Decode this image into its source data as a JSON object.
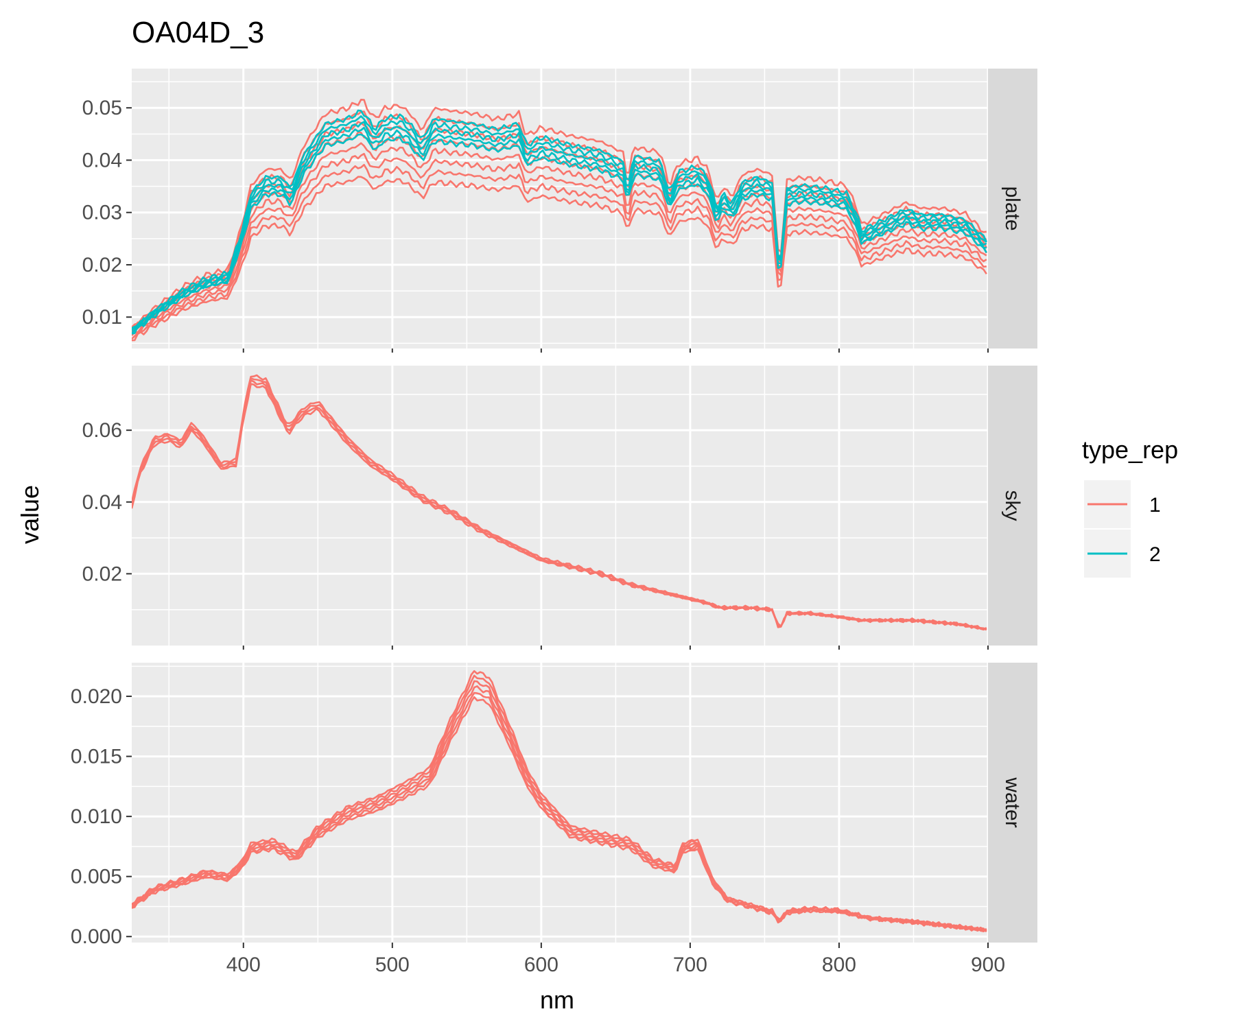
{
  "chart_data": {
    "type": "line",
    "title": "OA04D_3",
    "xlabel": "nm",
    "ylabel": "value",
    "xlim": [
      325,
      900
    ],
    "x_ticks": [
      "400",
      "500",
      "600",
      "700",
      "800",
      "900"
    ],
    "x_tick_values": [
      400,
      500,
      600,
      700,
      800,
      900
    ],
    "grid": true,
    "legend": {
      "title": "type_rep",
      "placement": "right",
      "entries": [
        {
          "label": "1",
          "color": "#F8766D"
        },
        {
          "label": "2",
          "color": "#00BFC4"
        }
      ]
    },
    "panels": [
      {
        "strip": "plate",
        "ylim": [
          0.004,
          0.0575
        ],
        "y_ticks": [
          "0.01",
          "0.02",
          "0.03",
          "0.04",
          "0.05"
        ],
        "y_tick_values": [
          0.01,
          0.02,
          0.03,
          0.04,
          0.05
        ],
        "series": [
          {
            "type_rep": "1",
            "color": "#F8766D",
            "count": 8,
            "spread": [
              -0.0095,
              0.0025
            ]
          },
          {
            "type_rep": "2",
            "color": "#00BFC4",
            "count": 5,
            "spread": [
              -0.0028,
              0.0008
            ]
          }
        ],
        "profile": [
          [
            325,
            0.0075
          ],
          [
            340,
            0.011
          ],
          [
            360,
            0.015
          ],
          [
            375,
            0.017
          ],
          [
            390,
            0.018
          ],
          [
            400,
            0.027
          ],
          [
            405,
            0.033
          ],
          [
            415,
            0.036
          ],
          [
            425,
            0.036
          ],
          [
            432,
            0.034
          ],
          [
            440,
            0.04
          ],
          [
            455,
            0.046
          ],
          [
            470,
            0.047
          ],
          [
            480,
            0.0485
          ],
          [
            488,
            0.045
          ],
          [
            495,
            0.047
          ],
          [
            505,
            0.0475
          ],
          [
            512,
            0.046
          ],
          [
            520,
            0.043
          ],
          [
            528,
            0.047
          ],
          [
            540,
            0.0465
          ],
          [
            555,
            0.046
          ],
          [
            570,
            0.045
          ],
          [
            585,
            0.046
          ],
          [
            590,
            0.042
          ],
          [
            600,
            0.0435
          ],
          [
            620,
            0.042
          ],
          [
            640,
            0.041
          ],
          [
            655,
            0.039
          ],
          [
            658,
            0.034
          ],
          [
            662,
            0.04
          ],
          [
            680,
            0.039
          ],
          [
            686,
            0.033
          ],
          [
            692,
            0.037
          ],
          [
            705,
            0.038
          ],
          [
            712,
            0.036
          ],
          [
            718,
            0.03
          ],
          [
            722,
            0.033
          ],
          [
            728,
            0.031
          ],
          [
            735,
            0.035
          ],
          [
            745,
            0.036
          ],
          [
            755,
            0.035
          ],
          [
            760,
            0.018
          ],
          [
            765,
            0.034
          ],
          [
            775,
            0.0345
          ],
          [
            790,
            0.034
          ],
          [
            805,
            0.033
          ],
          [
            812,
            0.029
          ],
          [
            815,
            0.026
          ],
          [
            830,
            0.028
          ],
          [
            845,
            0.03
          ],
          [
            855,
            0.029
          ],
          [
            870,
            0.029
          ],
          [
            885,
            0.028
          ],
          [
            900,
            0.024
          ]
        ]
      },
      {
        "strip": "sky",
        "ylim": [
          0.0,
          0.078
        ],
        "y_ticks": [
          "0.02",
          "0.04",
          "0.06"
        ],
        "y_tick_values": [
          0.02,
          0.04,
          0.06
        ],
        "series": [
          {
            "type_rep": "1",
            "color": "#F8766D",
            "count": 4,
            "spread": [
              -0.0007,
              0.0007
            ]
          }
        ],
        "profile": [
          [
            325,
            0.039
          ],
          [
            330,
            0.048
          ],
          [
            340,
            0.057
          ],
          [
            350,
            0.058
          ],
          [
            358,
            0.056
          ],
          [
            365,
            0.061
          ],
          [
            372,
            0.058
          ],
          [
            385,
            0.05
          ],
          [
            395,
            0.051
          ],
          [
            400,
            0.064
          ],
          [
            405,
            0.074
          ],
          [
            415,
            0.073
          ],
          [
            430,
            0.06
          ],
          [
            440,
            0.065
          ],
          [
            450,
            0.067
          ],
          [
            460,
            0.062
          ],
          [
            470,
            0.057
          ],
          [
            485,
            0.051
          ],
          [
            500,
            0.047
          ],
          [
            520,
            0.041
          ],
          [
            540,
            0.037
          ],
          [
            560,
            0.032
          ],
          [
            580,
            0.028
          ],
          [
            600,
            0.024
          ],
          [
            620,
            0.022
          ],
          [
            640,
            0.02
          ],
          [
            660,
            0.017
          ],
          [
            680,
            0.015
          ],
          [
            700,
            0.013
          ],
          [
            710,
            0.012
          ],
          [
            720,
            0.0105
          ],
          [
            740,
            0.0105
          ],
          [
            755,
            0.01
          ],
          [
            760,
            0.0045
          ],
          [
            765,
            0.009
          ],
          [
            780,
            0.009
          ],
          [
            800,
            0.008
          ],
          [
            815,
            0.007
          ],
          [
            850,
            0.007
          ],
          [
            880,
            0.006
          ],
          [
            900,
            0.0045
          ]
        ]
      },
      {
        "strip": "water",
        "ylim": [
          -0.0005,
          0.0228
        ],
        "y_ticks": [
          "0.000",
          "0.005",
          "0.010",
          "0.015",
          "0.020"
        ],
        "y_tick_values": [
          0.0,
          0.005,
          0.01,
          0.015,
          0.02
        ],
        "series": [
          {
            "type_rep": "1",
            "color": "#F8766D",
            "count": 6,
            "spread": [
              -0.0006,
              0.0016
            ]
          }
        ],
        "profile": [
          [
            325,
            0.0025
          ],
          [
            340,
            0.0038
          ],
          [
            360,
            0.0045
          ],
          [
            375,
            0.0051
          ],
          [
            390,
            0.0048
          ],
          [
            400,
            0.006
          ],
          [
            405,
            0.0072
          ],
          [
            420,
            0.0075
          ],
          [
            435,
            0.0065
          ],
          [
            450,
            0.0085
          ],
          [
            470,
            0.01
          ],
          [
            490,
            0.0108
          ],
          [
            510,
            0.012
          ],
          [
            525,
            0.013
          ],
          [
            540,
            0.017
          ],
          [
            555,
            0.0205
          ],
          [
            565,
            0.02
          ],
          [
            580,
            0.016
          ],
          [
            590,
            0.013
          ],
          [
            600,
            0.011
          ],
          [
            620,
            0.0085
          ],
          [
            640,
            0.008
          ],
          [
            660,
            0.0075
          ],
          [
            675,
            0.006
          ],
          [
            690,
            0.0055
          ],
          [
            695,
            0.0072
          ],
          [
            705,
            0.0075
          ],
          [
            715,
            0.0045
          ],
          [
            725,
            0.003
          ],
          [
            740,
            0.0025
          ],
          [
            755,
            0.002
          ],
          [
            760,
            0.0012
          ],
          [
            765,
            0.002
          ],
          [
            780,
            0.0022
          ],
          [
            800,
            0.0021
          ],
          [
            820,
            0.0015
          ],
          [
            850,
            0.0012
          ],
          [
            900,
            0.0005
          ]
        ]
      }
    ]
  }
}
